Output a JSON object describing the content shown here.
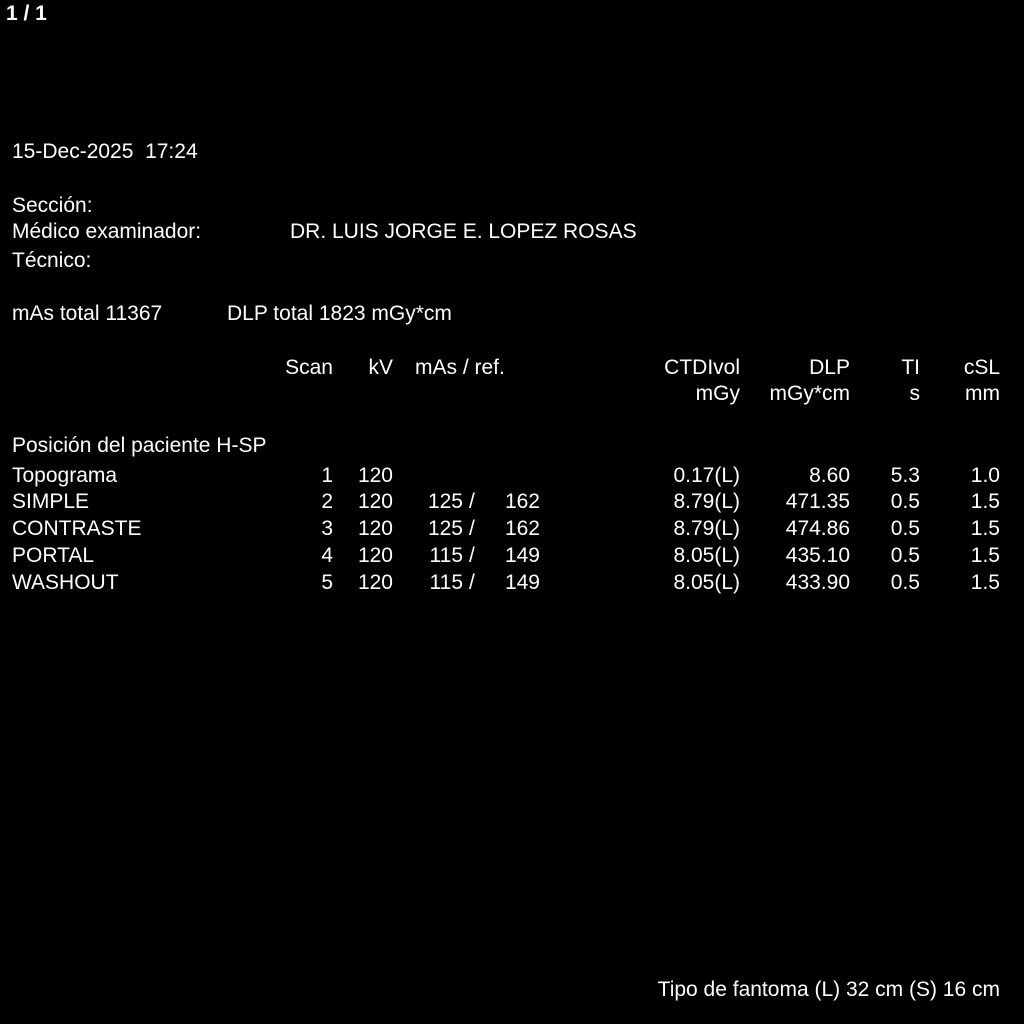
{
  "page_indicator": "1 / 1",
  "datetime": "15-Dec-2025  17:24",
  "info": {
    "section_label": "Sección:",
    "section_value": "",
    "physician_label": "Médico examinador:",
    "physician_value": "DR. LUIS JORGE E. LOPEZ ROSAS",
    "technician_label": "Técnico:",
    "technician_value": ""
  },
  "totals": {
    "mas_total": "mAs total 11367",
    "dlp_total": "DLP total 1823 mGy*cm"
  },
  "table": {
    "headers": {
      "scan": "Scan",
      "kv": "kV",
      "mas_ref": "mAs / ref.",
      "ctdivol": "CTDIvol",
      "ctdivol_unit": "mGy",
      "dlp": "DLP",
      "dlp_unit": "mGy*cm",
      "ti": "TI",
      "ti_unit": "s",
      "csl": "cSL",
      "csl_unit": "mm"
    },
    "patient_position": "Posición del paciente H-SP",
    "rows": [
      {
        "name": "Topograma",
        "scan": "1",
        "kv": "120",
        "mas": "",
        "slash": "",
        "ref": "",
        "ctdivol": "0.17(L)",
        "dlp": "8.60",
        "ti": "5.3",
        "csl": "1.0"
      },
      {
        "name": "SIMPLE",
        "scan": "2",
        "kv": "120",
        "mas": "125",
        "slash": "/",
        "ref": "162",
        "ctdivol": "8.79(L)",
        "dlp": "471.35",
        "ti": "0.5",
        "csl": "1.5"
      },
      {
        "name": "CONTRASTE",
        "scan": "3",
        "kv": "120",
        "mas": "125",
        "slash": "/",
        "ref": "162",
        "ctdivol": "8.79(L)",
        "dlp": "474.86",
        "ti": "0.5",
        "csl": "1.5"
      },
      {
        "name": "PORTAL",
        "scan": "4",
        "kv": "120",
        "mas": "115",
        "slash": "/",
        "ref": "149",
        "ctdivol": "8.05(L)",
        "dlp": "435.10",
        "ti": "0.5",
        "csl": "1.5"
      },
      {
        "name": "WASHOUT",
        "scan": "5",
        "kv": "120",
        "mas": "115",
        "slash": "/",
        "ref": "149",
        "ctdivol": "8.05(L)",
        "dlp": "433.90",
        "ti": "0.5",
        "csl": "1.5"
      }
    ]
  },
  "footer": "Tipo de fantoma (L) 32 cm (S) 16 cm"
}
